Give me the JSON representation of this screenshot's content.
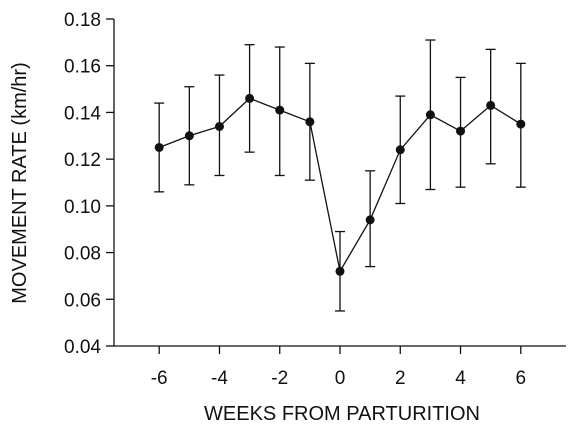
{
  "chart_data": {
    "type": "line",
    "title": "",
    "xlabel": "WEEKS FROM PARTURITION",
    "ylabel": "MOVEMENT RATE (km/hr)",
    "x": [
      -6,
      -5,
      -4,
      -3,
      -2,
      -1,
      0,
      1,
      2,
      3,
      4,
      5,
      6
    ],
    "series": [
      {
        "values": [
          0.125,
          0.13,
          0.134,
          0.146,
          0.141,
          0.136,
          0.072,
          0.094,
          0.124,
          0.139,
          0.132,
          0.143,
          0.135
        ],
        "error_upper": [
          0.144,
          0.151,
          0.156,
          0.169,
          0.168,
          0.161,
          0.089,
          0.115,
          0.147,
          0.171,
          0.155,
          0.167,
          0.161
        ],
        "error_lower": [
          0.106,
          0.109,
          0.113,
          0.123,
          0.113,
          0.111,
          0.055,
          0.074,
          0.101,
          0.107,
          0.108,
          0.118,
          0.108
        ]
      }
    ],
    "xlim": [
      -7.5,
      7.5
    ],
    "ylim": [
      0.04,
      0.18
    ],
    "xticks": [
      -6,
      -4,
      -2,
      0,
      2,
      4,
      6
    ],
    "xtick_labels": [
      "-6",
      "-4",
      "-2",
      "0",
      "2",
      "4",
      "6"
    ],
    "yticks": [
      0.04,
      0.06,
      0.08,
      0.1,
      0.12,
      0.14,
      0.16,
      0.18
    ],
    "ytick_labels": [
      "0.04",
      "0.06",
      "0.08",
      "0.10",
      "0.12",
      "0.14",
      "0.16",
      "0.18"
    ],
    "grid": false,
    "legend": "none",
    "colors": {
      "line": "#111111",
      "marker": "#111111",
      "axis": "#111111"
    }
  }
}
